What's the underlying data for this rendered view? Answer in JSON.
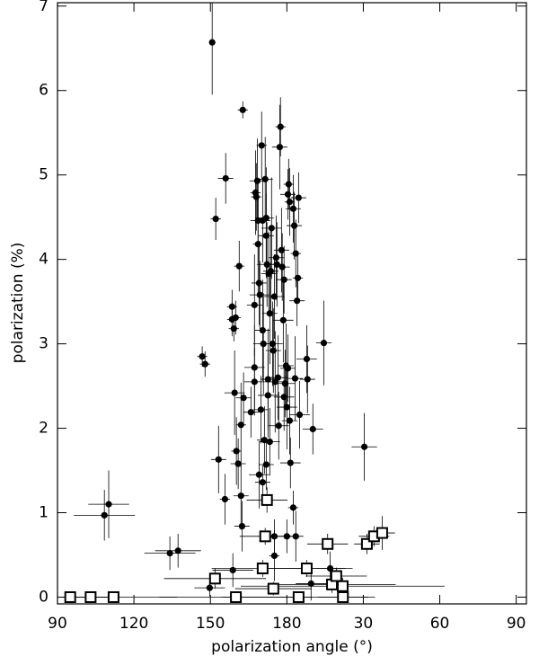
{
  "chart_data": {
    "type": "scatter",
    "x_label": "polarization angle (°)",
    "y_label": "polarization (%)",
    "xlim": [
      90,
      274
    ],
    "ylim": [
      -0.08,
      7.04
    ],
    "xticks": [
      90,
      120,
      150,
      180,
      {
        "value": 210,
        "label": "30"
      },
      {
        "value": 240,
        "label": "60"
      },
      {
        "value": 270,
        "label": "90"
      }
    ],
    "yticks": [
      0,
      1,
      2,
      3,
      4,
      5,
      6,
      7
    ],
    "series": [
      {
        "marker": "circle",
        "color": "#000000",
        "x": [
          150.7,
          162.7,
          152.1,
          156,
          108.4,
          110.1,
          134.1,
          137.3,
          146.8,
          147.9,
          153.2,
          155.7,
          158.5,
          158.5,
          159.2,
          159.9,
          159.5,
          160.2,
          160.9,
          161.3,
          162,
          162,
          162.4,
          158.8,
          149.7,
          163,
          165.9,
          167.3,
          167.3,
          167.3,
          167.7,
          168,
          168.4,
          168.7,
          168.7,
          169.1,
          169.4,
          169.8,
          169.1,
          170.1,
          170.5,
          170.5,
          170.8,
          171.5,
          171.2,
          171.9,
          171.9,
          172.2,
          172.6,
          172.6,
          172.9,
          173.3,
          173.3,
          173.7,
          174,
          174.4,
          174.7,
          175.1,
          175.4,
          175.8,
          176.1,
          176.5,
          176.8,
          177.2,
          177.5,
          177.9,
          178.2,
          178.6,
          178.9,
          178.9,
          179.3,
          179.7,
          180,
          180.4,
          180.7,
          181.1,
          181.4,
          181.1,
          182.5,
          182.9,
          183.5,
          184,
          184.3,
          184.6,
          185,
          183.2,
          182.5,
          183.5,
          180,
          175.1,
          175.1,
          188.1,
          187.8,
          190.2,
          194.5,
          197,
          189.5,
          210.4,
          180.4,
          171.9,
          170.5
        ],
        "values": [
          6.57,
          5.77,
          4.48,
          4.96,
          0.97,
          1.1,
          0.52,
          0.55,
          2.85,
          2.76,
          1.63,
          1.16,
          3.44,
          3.29,
          3.18,
          3.31,
          2.42,
          1.73,
          1.58,
          3.92,
          2.04,
          1.2,
          0.84,
          0.32,
          0.11,
          2.36,
          2.19,
          2.55,
          3.46,
          2.72,
          4.79,
          4.74,
          4.93,
          4.46,
          4.18,
          3.72,
          3.58,
          2.22,
          1.45,
          5.35,
          4.46,
          3.16,
          3.0,
          4.95,
          1.86,
          4.49,
          4.28,
          3.94,
          2.58,
          2.39,
          3.83,
          3.36,
          1.84,
          3.86,
          4.37,
          3.0,
          2.92,
          3.56,
          2.55,
          4.02,
          3.94,
          2.6,
          2.03,
          5.33,
          5.57,
          4.11,
          3.91,
          3.28,
          3.76,
          2.37,
          2.53,
          2.74,
          2.25,
          4.77,
          4.89,
          2.09,
          1.59,
          4.68,
          4.6,
          4.4,
          4.07,
          3.51,
          3.78,
          4.73,
          2.16,
          2.59,
          1.06,
          0.72,
          0.72,
          0.72,
          0.49,
          2.58,
          2.82,
          1.99,
          3.01,
          0.34,
          0.16,
          1.78,
          2.71,
          1.57,
          1.36
        ],
        "xerr": [
          1,
          2,
          2,
          3,
          12,
          8,
          10,
          9,
          2,
          2,
          3,
          2,
          2,
          2,
          2,
          2,
          4,
          2,
          3,
          2,
          2,
          3,
          3,
          8,
          6,
          3,
          3,
          4,
          3,
          4,
          2,
          2,
          3,
          3,
          2,
          3,
          4,
          3,
          4,
          2,
          3,
          3,
          4,
          3,
          3,
          3,
          3,
          4,
          3,
          4,
          3,
          3,
          4,
          3,
          4,
          4,
          3,
          4,
          4,
          3,
          3,
          4,
          4,
          3,
          2,
          3,
          3,
          4,
          3,
          4,
          4,
          3,
          4,
          3,
          2,
          3,
          4,
          2,
          3,
          3,
          2,
          3,
          2,
          3,
          4,
          3,
          2,
          3,
          3,
          2,
          2,
          3,
          4,
          4,
          3,
          6,
          6,
          5,
          3,
          3,
          3
        ],
        "yerr": [
          0.62,
          0.1,
          0.25,
          0.3,
          0.3,
          0.4,
          0.2,
          0.2,
          0.12,
          0.15,
          0.4,
          0.3,
          0.2,
          0.2,
          0.15,
          0.2,
          0.5,
          0.4,
          0.3,
          0.3,
          0.5,
          0.4,
          0.3,
          0.2,
          0.1,
          0.3,
          0.3,
          0.4,
          0.6,
          0.5,
          0.5,
          0.4,
          0.5,
          0.5,
          0.6,
          0.5,
          0.4,
          0.4,
          0.4,
          0.4,
          0.5,
          0.6,
          0.6,
          0.5,
          0.4,
          0.6,
          0.5,
          0.5,
          0.6,
          0.5,
          0.5,
          0.6,
          0.4,
          0.5,
          0.6,
          0.5,
          0.5,
          0.5,
          0.6,
          0.5,
          0.5,
          0.5,
          0.4,
          0.5,
          0.35,
          0.5,
          0.4,
          0.5,
          0.4,
          0.4,
          0.4,
          0.5,
          0.5,
          0.3,
          0.3,
          0.4,
          0.3,
          0.4,
          0.4,
          0.4,
          0.4,
          0.3,
          0.3,
          0.3,
          0.4,
          0.5,
          0.2,
          0.3,
          0.2,
          0.2,
          0.3,
          0.4,
          0.4,
          0.3,
          0.5,
          0.2,
          0.2,
          0.4,
          0.4,
          0.3,
          0.2
        ]
      },
      {
        "marker": "square",
        "color": "#000000",
        "x": [
          95,
          103,
          112,
          151.8,
          160,
          172.2,
          171.5,
          170.5,
          174.7,
          184.6,
          187.8,
          196,
          197.7,
          199.4,
          201.9,
          202,
          211.4,
          214.2,
          217.4
        ],
        "values": [
          0,
          0,
          0,
          0.22,
          0,
          1.15,
          0.72,
          0.34,
          0.1,
          0,
          0.34,
          0.63,
          0.15,
          0.25,
          0.13,
          0,
          0.63,
          0.72,
          0.76
        ],
        "xerr": [
          15,
          10,
          25,
          20,
          30,
          8,
          10,
          20,
          15,
          30,
          18,
          8,
          25,
          12,
          40,
          10,
          5,
          6,
          5
        ],
        "yerr": [
          0.03,
          0.03,
          0.03,
          0.12,
          0.03,
          0.15,
          0.1,
          0.1,
          0.08,
          0.05,
          0.1,
          0.12,
          0.1,
          0.1,
          0.1,
          0.05,
          0.12,
          0.12,
          0.2
        ]
      }
    ]
  }
}
